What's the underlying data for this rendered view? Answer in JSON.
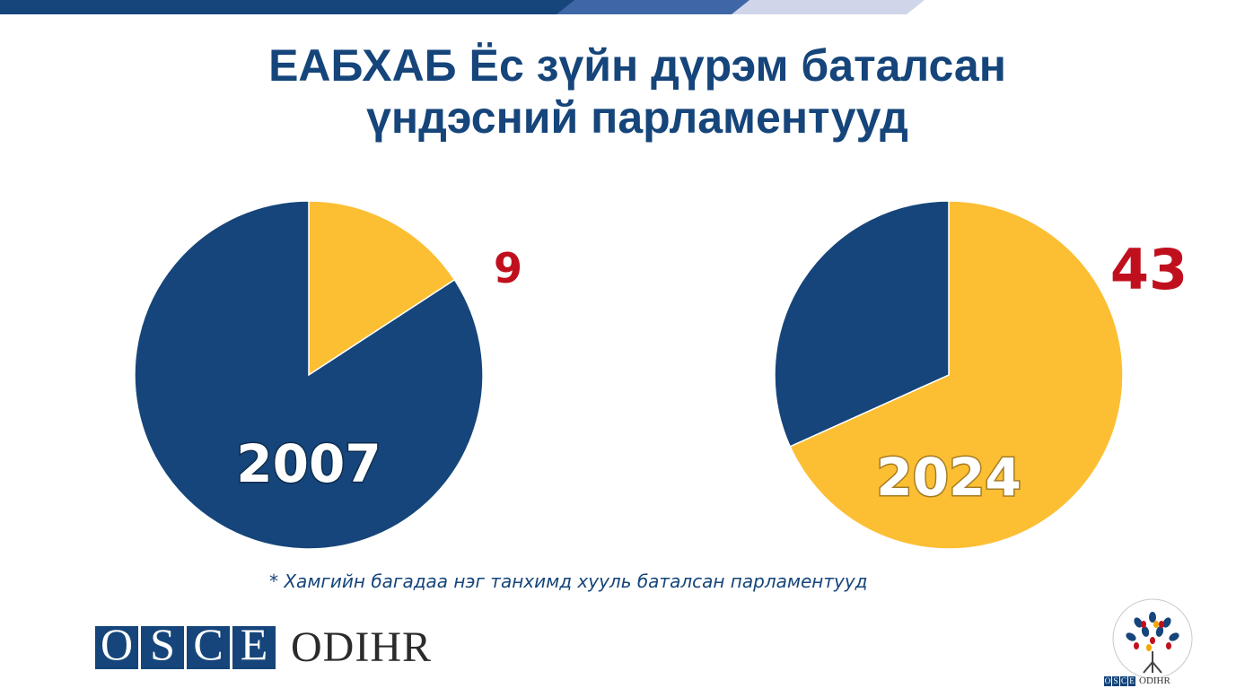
{
  "slide": {
    "title_line1": "ЕАБХАБ Ёс зүйн дүрэм баталсан",
    "title_line2": "үндэсний парламентууд",
    "footnote": "* Хамгийн багадаа нэг танхимд хууль баталсан парламентууд"
  },
  "logos": {
    "osce_letters": [
      "O",
      "S",
      "C",
      "E"
    ],
    "odihr": "ODIHR"
  },
  "colors": {
    "navy": "#15457a",
    "yellow": "#fcbf33",
    "highlight_red": "#c0101e",
    "top_bar_dark": "#15457a",
    "top_bar_mid": "#3f66a6",
    "top_bar_light": "#cfd6ea"
  },
  "chart_data": [
    {
      "type": "pie",
      "center_label": "2007",
      "slices": [
        {
          "value": 9,
          "color": "#fcbf33",
          "label": "9"
        },
        {
          "value": 48,
          "color": "#15457a"
        }
      ],
      "start_angle_deg": 0,
      "direction": "clockwise"
    },
    {
      "type": "pie",
      "center_label": "2024",
      "slices": [
        {
          "value": 43,
          "color": "#fcbf33",
          "label": "43"
        },
        {
          "value": 20,
          "color": "#15457a"
        }
      ],
      "start_angle_deg": 0,
      "direction": "clockwise"
    }
  ]
}
